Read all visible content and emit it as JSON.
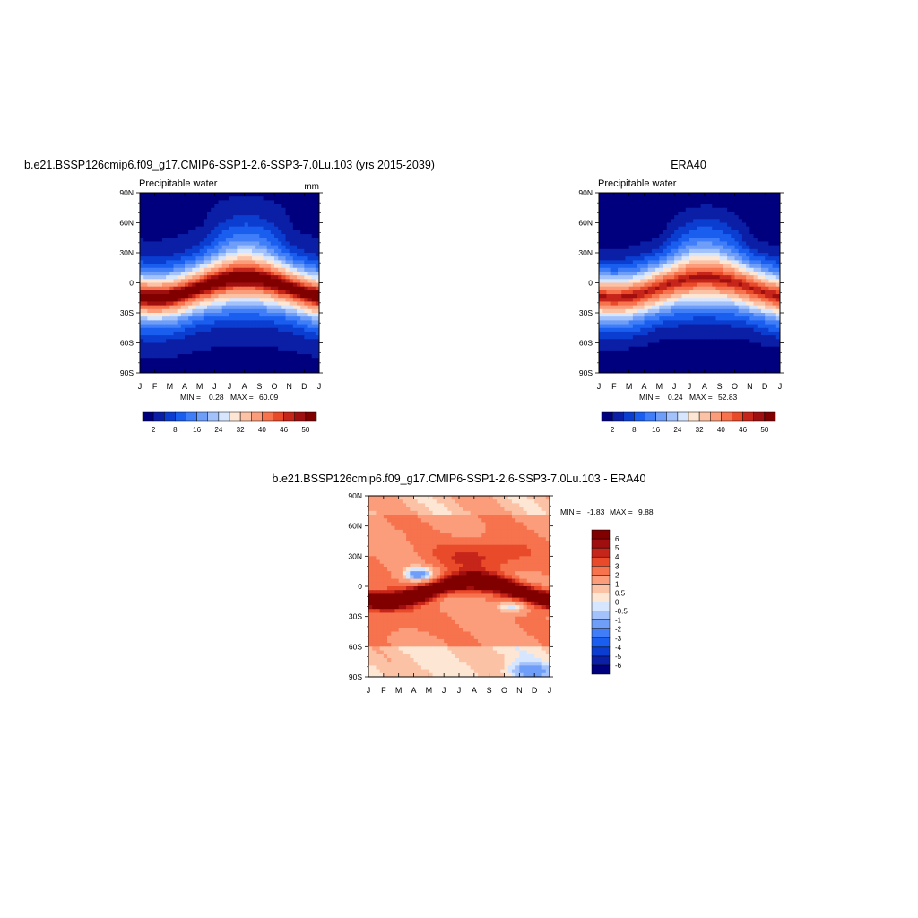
{
  "chart_data": [
    {
      "type": "heatmap",
      "title": "b.e21.BSSP126cmip6.f09_g17.CMIP6-SSP1-2.6-SSP3-7.0Lu.103 (yrs 2015-2039)",
      "subtitle_left": "Precipitable water",
      "subtitle_right": "mm",
      "x_ticks": [
        "J",
        "F",
        "M",
        "A",
        "M",
        "J",
        "J",
        "A",
        "S",
        "O",
        "N",
        "D",
        "J"
      ],
      "y_ticks": [
        "90N",
        "60N",
        "30N",
        "0",
        "30S",
        "60S",
        "90S"
      ],
      "min_label": "MIN =",
      "min_value": "0.28",
      "max_label": "MAX =",
      "max_value": "60.09",
      "range": [
        0.28,
        60.09
      ],
      "colorbar": {
        "levels": [
          2,
          5,
          8,
          12,
          16,
          20,
          24,
          28,
          32,
          36,
          40,
          44,
          46,
          48,
          50
        ],
        "labels": [
          "2",
          "8",
          "16",
          "24",
          "32",
          "40",
          "46",
          "50"
        ],
        "colors": [
          "#00007f",
          "#0a1fa6",
          "#0b3ed0",
          "#1a5ef0",
          "#3f7ef8",
          "#6f9ef8",
          "#a3c2fb",
          "#d6e6fe",
          "#fde6d3",
          "#fcc2a6",
          "#fb9d7a",
          "#f6734e",
          "#e84a2a",
          "#c6251a",
          "#a00f0f",
          "#800000"
        ]
      }
    },
    {
      "type": "heatmap",
      "title": "ERA40",
      "subtitle_left": "Precipitable water",
      "x_ticks": [
        "J",
        "F",
        "M",
        "A",
        "M",
        "J",
        "J",
        "A",
        "S",
        "O",
        "N",
        "D",
        "J"
      ],
      "y_ticks": [
        "90N",
        "60N",
        "30N",
        "0",
        "30S",
        "60S",
        "90S"
      ],
      "min_label": "MIN =",
      "min_value": "0.24",
      "max_label": "MAX =",
      "max_value": "52.83",
      "range": [
        0.24,
        52.83
      ],
      "colorbar": {
        "levels": [
          2,
          5,
          8,
          12,
          16,
          20,
          24,
          28,
          32,
          36,
          40,
          44,
          46,
          48,
          50
        ],
        "labels": [
          "2",
          "8",
          "16",
          "24",
          "32",
          "40",
          "46",
          "50"
        ],
        "colors": [
          "#00007f",
          "#0a1fa6",
          "#0b3ed0",
          "#1a5ef0",
          "#3f7ef8",
          "#6f9ef8",
          "#a3c2fb",
          "#d6e6fe",
          "#fde6d3",
          "#fcc2a6",
          "#fb9d7a",
          "#f6734e",
          "#e84a2a",
          "#c6251a",
          "#a00f0f",
          "#800000"
        ]
      }
    },
    {
      "type": "heatmap",
      "title": "b.e21.BSSP126cmip6.f09_g17.CMIP6-SSP1-2.6-SSP3-7.0Lu.103 - ERA40",
      "x_ticks": [
        "J",
        "F",
        "M",
        "A",
        "M",
        "J",
        "J",
        "A",
        "S",
        "O",
        "N",
        "D",
        "J"
      ],
      "y_ticks": [
        "90N",
        "60N",
        "30N",
        "0",
        "30S",
        "60S",
        "90S"
      ],
      "min_label": "MIN =",
      "min_value": "-1.83",
      "max_label": "MAX =",
      "max_value": "9.88",
      "range": [
        -1.83,
        9.88
      ],
      "colorbar": {
        "levels": [
          -6,
          -5,
          -4,
          -3,
          -2,
          -1,
          -0.5,
          0,
          0.5,
          1,
          2,
          3,
          4,
          5,
          6
        ],
        "labels": [
          "-6",
          "-5",
          "-4",
          "-3",
          "-2",
          "-1",
          "-0.5",
          "0",
          "0.5",
          "1",
          "2",
          "3",
          "4",
          "5",
          "6"
        ],
        "colors": [
          "#00007f",
          "#0a1fa6",
          "#0b3ed0",
          "#1a5ef0",
          "#3f7ef8",
          "#6f9ef8",
          "#a3c2fb",
          "#d6e6fe",
          "#fde6d3",
          "#fcc2a6",
          "#fb9d7a",
          "#f6734e",
          "#e84a2a",
          "#c6251a",
          "#a00f0f",
          "#800000"
        ]
      }
    }
  ]
}
